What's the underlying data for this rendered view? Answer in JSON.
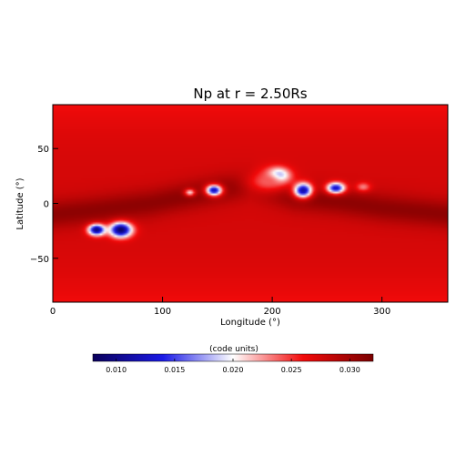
{
  "chart_data": {
    "type": "heatmap",
    "title": "Np at r = 2.50Rs",
    "xlabel": "Longitude (°)",
    "ylabel": "Latitude (°)",
    "xlim": [
      0,
      360
    ],
    "ylim": [
      -90,
      90
    ],
    "x_ticks": [
      0,
      100,
      200,
      300
    ],
    "y_ticks": [
      -50,
      0,
      50
    ],
    "x_tick_labels": [
      "0",
      "100",
      "200",
      "300"
    ],
    "y_tick_labels": [
      "−50",
      "0",
      "50"
    ],
    "colorbar": {
      "label": "(code units)",
      "range": [
        0.008,
        0.032
      ],
      "ticks": [
        0.01,
        0.015,
        0.02,
        0.025,
        0.03
      ],
      "tick_labels": [
        "0.010",
        "0.015",
        "0.020",
        "0.025",
        "0.030"
      ],
      "colormap": [
        "#0a005a",
        "#1a1ae6",
        "#ffffff",
        "#f20a0a",
        "#7a0000"
      ]
    },
    "background_value": 0.0275,
    "features": [
      {
        "lon": 40,
        "lat": -24,
        "rlon": 9,
        "rlat": 6,
        "value": 0.0095
      },
      {
        "lon": 62,
        "lat": -24,
        "rlon": 12,
        "rlat": 8,
        "value": 0.0085
      },
      {
        "lon": 125,
        "lat": 10,
        "rlon": 6,
        "rlat": 4,
        "value": 0.021
      },
      {
        "lon": 147,
        "lat": 12,
        "rlon": 9,
        "rlat": 6,
        "value": 0.012
      },
      {
        "lon": 205,
        "lat": 25,
        "rlon": 12,
        "rlat": 8,
        "value": 0.0105
      },
      {
        "lon": 228,
        "lat": 12,
        "rlon": 10,
        "rlat": 8,
        "value": 0.0105
      },
      {
        "lon": 258,
        "lat": 14,
        "rlon": 10,
        "rlat": 6,
        "value": 0.0125
      },
      {
        "lon": 283,
        "lat": 15,
        "rlon": 8,
        "rlat": 5,
        "value": 0.023
      },
      {
        "lon": 195,
        "lat": 20,
        "rlon": 25,
        "rlat": 14,
        "value": 0.024
      }
    ],
    "dark_band": [
      {
        "lon": 0,
        "lat": -10
      },
      {
        "lon": 40,
        "lat": -6
      },
      {
        "lon": 90,
        "lat": 0
      },
      {
        "lon": 140,
        "lat": 10
      },
      {
        "lon": 180,
        "lat": 18
      },
      {
        "lon": 220,
        "lat": 6
      },
      {
        "lon": 260,
        "lat": 2
      },
      {
        "lon": 300,
        "lat": -4
      },
      {
        "lon": 360,
        "lat": -10
      }
    ]
  }
}
